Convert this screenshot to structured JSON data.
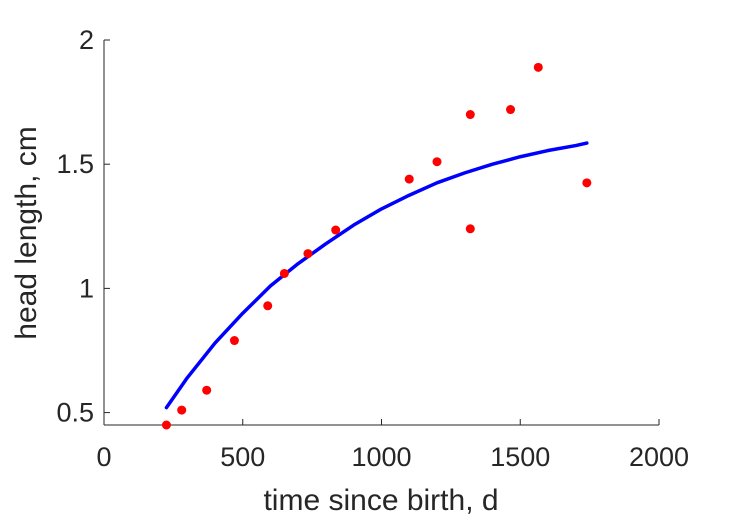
{
  "chart_data": {
    "type": "scatter",
    "title": "",
    "xlabel": "time since birth, d",
    "ylabel": "head length, cm",
    "xlim": [
      0,
      2000
    ],
    "ylim": [
      0.45,
      2
    ],
    "xticks": [
      0,
      500,
      1000,
      1500,
      2000
    ],
    "yticks": [
      0.5,
      1,
      1.5,
      2
    ],
    "xtick_labels": [
      "0",
      "500",
      "1000",
      "1500",
      "2000"
    ],
    "ytick_labels": [
      "0.5",
      "1",
      "1.5",
      "2"
    ],
    "grid": false,
    "legend": "none",
    "series": [
      {
        "kind": "scatter",
        "color": "#ff0000",
        "x": [
          225,
          280,
          370,
          470,
          590,
          650,
          735,
          835,
          1100,
          1200,
          1320,
          1320,
          1465,
          1565,
          1740
        ],
        "y": [
          0.45,
          0.51,
          0.59,
          0.79,
          0.93,
          1.06,
          1.14,
          1.235,
          1.44,
          1.51,
          1.24,
          1.7,
          1.72,
          1.89,
          1.425
        ]
      },
      {
        "kind": "line",
        "color": "#0000ff",
        "x": [
          225,
          300,
          400,
          500,
          600,
          700,
          800,
          900,
          1000,
          1100,
          1200,
          1300,
          1400,
          1500,
          1600,
          1700,
          1740
        ],
        "y": [
          0.52,
          0.64,
          0.78,
          0.9,
          1.01,
          1.1,
          1.18,
          1.255,
          1.32,
          1.375,
          1.425,
          1.465,
          1.5,
          1.53,
          1.555,
          1.575,
          1.585
        ]
      }
    ]
  }
}
